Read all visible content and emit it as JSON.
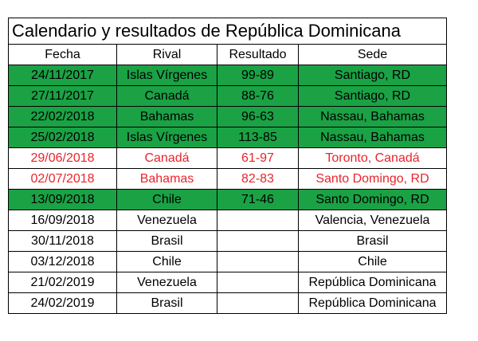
{
  "title": "Calendario y resultados de República Dominicana",
  "colors": {
    "win_bg": "#1aa245",
    "loss_text": "#e8252b"
  },
  "headers": [
    "Fecha",
    "Rival",
    "Resultado",
    "Sede"
  ],
  "rows": [
    {
      "fecha": "24/11/2017",
      "rival": "Islas Vírgenes",
      "resultado": "99-89",
      "sede": "Santiago, RD",
      "status": "win"
    },
    {
      "fecha": "27/11/2017",
      "rival": "Canadá",
      "resultado": "88-76",
      "sede": "Santiago, RD",
      "status": "win"
    },
    {
      "fecha": "22/02/2018",
      "rival": "Bahamas",
      "resultado": "96-63",
      "sede": "Nassau, Bahamas",
      "status": "win"
    },
    {
      "fecha": "25/02/2018",
      "rival": "Islas Vírgenes",
      "resultado": "113-85",
      "sede": "Nassau, Bahamas",
      "status": "win"
    },
    {
      "fecha": "29/06/2018",
      "rival": "Canadá",
      "resultado": "61-97",
      "sede": "Toronto, Canadá",
      "status": "loss"
    },
    {
      "fecha": "02/07/2018",
      "rival": "Bahamas",
      "resultado": "82-83",
      "sede": "Santo Domingo, RD",
      "status": "loss"
    },
    {
      "fecha": "13/09/2018",
      "rival": "Chile",
      "resultado": "71-46",
      "sede": "Santo Domingo, RD",
      "status": "win"
    },
    {
      "fecha": "16/09/2018",
      "rival": "Venezuela",
      "resultado": "",
      "sede": "Valencia, Venezuela",
      "status": "pending"
    },
    {
      "fecha": "30/11/2018",
      "rival": "Brasil",
      "resultado": "",
      "sede": "Brasil",
      "status": "pending"
    },
    {
      "fecha": "03/12/2018",
      "rival": "Chile",
      "resultado": "",
      "sede": "Chile",
      "status": "pending"
    },
    {
      "fecha": "21/02/2019",
      "rival": "Venezuela",
      "resultado": "",
      "sede": "República Dominicana",
      "status": "pending"
    },
    {
      "fecha": "24/02/2019",
      "rival": "Brasil",
      "resultado": "",
      "sede": "República Dominicana",
      "status": "pending"
    }
  ]
}
